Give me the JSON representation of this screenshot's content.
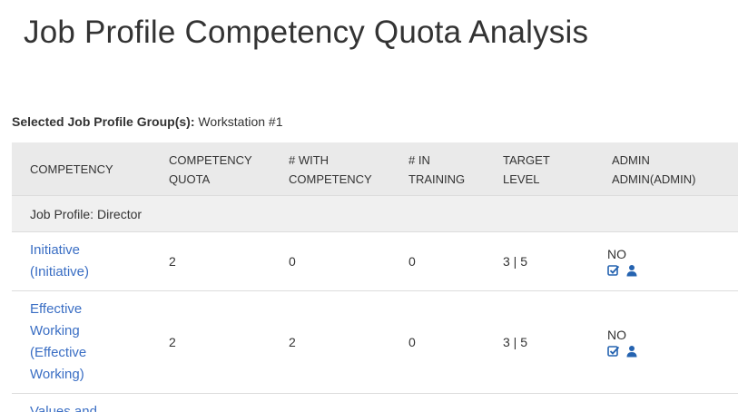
{
  "page": {
    "title": "Job Profile Competency Quota Analysis"
  },
  "selection": {
    "label": "Selected Job Profile Group(s):",
    "value": "Workstation #1"
  },
  "table": {
    "headers": {
      "competency": "COMPETENCY",
      "quota_l1": "COMPETENCY",
      "quota_l2": "QUOTA",
      "with_l1": "# WITH",
      "with_l2": "COMPETENCY",
      "training_l1": "# IN",
      "training_l2": "TRAINING",
      "target_l1": "TARGET",
      "target_l2": "LEVEL",
      "admin_l1": "ADMIN",
      "admin_l2": "ADMIN(ADMIN)"
    },
    "group": {
      "prefix": "Job Profile:",
      "name": "Director"
    },
    "rows": [
      {
        "competency_lines": [
          "Initiative",
          "(Initiative)"
        ],
        "quota": "2",
        "with_competency": "0",
        "in_training": "0",
        "target_level": "3 | 5",
        "admin_status": "NO"
      },
      {
        "competency_lines": [
          "Effective",
          "Working",
          "(Effective",
          "Working)"
        ],
        "quota": "2",
        "with_competency": "2",
        "in_training": "0",
        "target_level": "3 | 5",
        "admin_status": "NO"
      },
      {
        "competency_lines": [
          "Values and"
        ],
        "quota": "",
        "with_competency": "",
        "in_training": "",
        "target_level": "",
        "admin_status": ""
      }
    ]
  },
  "icons": {
    "check": "check-square-icon",
    "user": "user-icon"
  },
  "colors": {
    "link": "#3a6ec4",
    "icon": "#2563b0",
    "header_bg": "#eaeaea",
    "group_bg": "#f0f0f0"
  }
}
